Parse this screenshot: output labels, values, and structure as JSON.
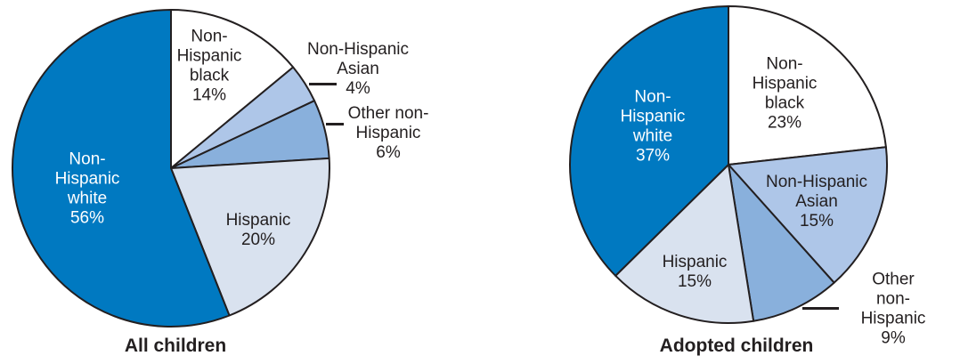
{
  "figure": {
    "background": "#ffffff",
    "stroke_color": "#231f20",
    "text_color": "#231f20"
  },
  "chart_data": [
    {
      "type": "pie",
      "title": "All children",
      "categories": [
        "Non-Hispanic black",
        "Non-Hispanic Asian",
        "Other non-Hispanic",
        "Hispanic",
        "Non-Hispanic white"
      ],
      "values": [
        14,
        4,
        6,
        20,
        56
      ],
      "unit": "%",
      "direction": "clockwise",
      "start_angle_deg": 0,
      "colors": [
        "#ffffff",
        "#aec6e8",
        "#89b0dc",
        "#d9e2ef",
        "#0079c1"
      ],
      "legend_position": "none",
      "label_style": "on-slice with leader lines for small slices"
    },
    {
      "type": "pie",
      "title": "Adopted children",
      "categories": [
        "Non-Hispanic black",
        "Non-Hispanic Asian",
        "Other non-Hispanic",
        "Hispanic",
        "Non-Hispanic white"
      ],
      "values": [
        23,
        15,
        9,
        15,
        37
      ],
      "unit": "%",
      "direction": "clockwise",
      "start_angle_deg": 0,
      "colors": [
        "#ffffff",
        "#aec6e8",
        "#89b0dc",
        "#d9e2ef",
        "#0079c1"
      ],
      "legend_position": "none",
      "label_style": "on-slice with leader lines for small slices"
    }
  ],
  "left_pie": {
    "caption": "All children",
    "labels": {
      "white": "Non-\nHispanic\nwhite\n56%",
      "black": "Non-\nHispanic\nblack\n14%",
      "asian": "Non-Hispanic\nAsian\n4%",
      "other": "Other non-\nHispanic\n6%",
      "hispanic": "Hispanic\n20%"
    }
  },
  "right_pie": {
    "caption": "Adopted children",
    "labels": {
      "white": "Non-\nHispanic\nwhite\n37%",
      "black": "Non-\nHispanic\nblack\n23%",
      "asian": "Non-Hispanic\nAsian\n15%",
      "other": "Other\nnon-Hispanic\n9%",
      "hispanic": "Hispanic\n15%"
    }
  }
}
